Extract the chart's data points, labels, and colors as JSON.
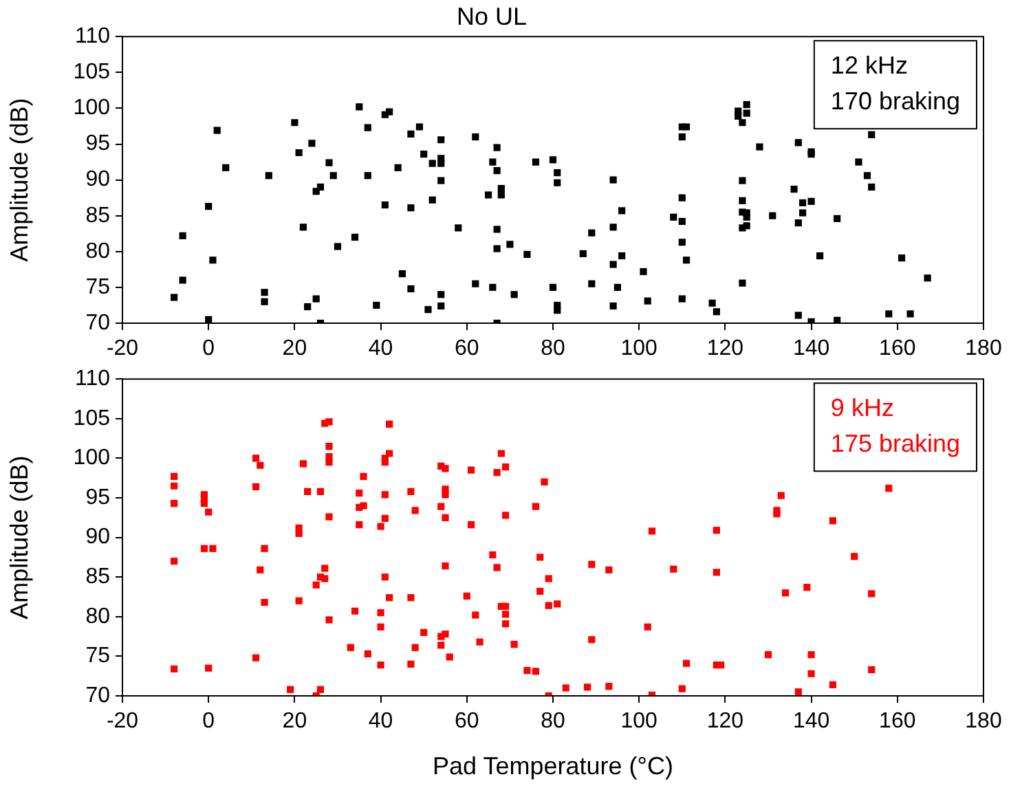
{
  "chart_data": [
    {
      "type": "scatter",
      "title": "No UL",
      "ylabel": "Amplitude (dB)",
      "xlim": [
        -20,
        180
      ],
      "xticks": [
        -20,
        0,
        20,
        40,
        60,
        80,
        100,
        120,
        140,
        160,
        180
      ],
      "ylim": [
        70,
        110
      ],
      "yticks": [
        70,
        75,
        80,
        85,
        90,
        95,
        100,
        105,
        110
      ],
      "marker": "square",
      "grid": false,
      "annotations": [
        "12 kHz",
        "170 braking"
      ],
      "series": [
        {
          "color": "#000000",
          "x": [
            -8,
            -6,
            -6,
            0,
            0,
            1,
            2,
            4,
            13,
            13,
            14,
            20,
            21,
            22,
            23,
            24,
            25,
            25,
            26,
            26,
            28,
            29,
            30,
            34,
            35,
            37,
            37,
            39,
            41,
            42,
            41,
            44,
            45,
            47,
            47,
            49,
            47,
            50,
            51,
            52,
            52,
            54,
            54,
            54,
            54,
            54,
            54,
            58,
            62,
            62,
            66,
            67,
            67,
            65,
            68,
            68,
            67,
            67,
            70,
            66,
            71,
            74,
            67,
            76,
            80,
            80,
            81,
            81,
            81,
            81,
            94,
            96,
            89,
            94,
            87,
            96,
            94,
            101,
            89,
            95,
            94,
            102,
            110,
            111,
            110,
            110,
            108,
            110,
            110,
            111,
            110,
            117,
            118,
            123,
            123,
            125,
            125,
            124,
            128,
            124,
            124,
            124,
            125,
            125,
            124,
            125,
            131,
            124,
            137,
            140,
            140,
            136,
            138,
            138,
            140,
            137,
            146,
            142,
            137,
            140,
            146,
            154,
            151,
            153,
            154,
            161,
            158,
            163,
            167
          ],
          "values": [
            73.6,
            82.2,
            76,
            86.3,
            70.5,
            78.8,
            96.9,
            91.7,
            74.3,
            73,
            90.6,
            98,
            93.8,
            83.4,
            72.3,
            95.1,
            73.4,
            88.4,
            89,
            70,
            92.4,
            90.6,
            80.7,
            82,
            100.2,
            97.3,
            90.6,
            72.5,
            99.1,
            99.5,
            86.5,
            91.7,
            76.9,
            96.4,
            74.8,
            97.4,
            86.1,
            93.6,
            71.9,
            92.3,
            87.2,
            95.6,
            93,
            92.3,
            89.9,
            74,
            72.4,
            83.3,
            96,
            75.5,
            92.5,
            94.5,
            91.3,
            87.9,
            88.8,
            87.9,
            83.1,
            80.4,
            81,
            75,
            74,
            79.6,
            70,
            92.5,
            92.8,
            75,
            91,
            89.6,
            72.5,
            71.8,
            90,
            85.7,
            82.6,
            83.4,
            79.7,
            79.4,
            78.2,
            77.2,
            75.5,
            75,
            72.4,
            73.1,
            97.4,
            97.4,
            96,
            87.5,
            84.8,
            84.2,
            81.3,
            78.8,
            73.4,
            72.8,
            71.6,
            99.6,
            98.9,
            100.5,
            99.3,
            98,
            94.6,
            89.9,
            87.1,
            85.5,
            85.4,
            84.8,
            83.3,
            83.6,
            85,
            75.6,
            95.2,
            93.9,
            93.6,
            88.7,
            86.8,
            85.4,
            87,
            84,
            84.6,
            79.4,
            71.1,
            70.2,
            70.4,
            96.3,
            92.5,
            90.6,
            89,
            79.1,
            71.3,
            71.3,
            76.3
          ]
        }
      ]
    },
    {
      "type": "scatter",
      "xlabel": "Pad Temperature (°C)",
      "ylabel": "Amplitude (dB)",
      "xlim": [
        -20,
        180
      ],
      "xticks": [
        -20,
        0,
        20,
        40,
        60,
        80,
        100,
        120,
        140,
        160,
        180
      ],
      "ylim": [
        70,
        110
      ],
      "yticks": [
        70,
        75,
        80,
        85,
        90,
        95,
        100,
        105,
        110
      ],
      "marker": "square",
      "grid": false,
      "annotations": [
        "9 kHz",
        "175 braking"
      ],
      "series": [
        {
          "color": "#ff0000",
          "x": [
            -8,
            -8,
            -8,
            -8,
            -8,
            -1,
            -1,
            -1,
            0,
            -1,
            1,
            0,
            11,
            12,
            11,
            13,
            12,
            13,
            11,
            19,
            22,
            23,
            26,
            21,
            21,
            21,
            27,
            26,
            27,
            25,
            27,
            28,
            28,
            28,
            28,
            28,
            28,
            26,
            25,
            36,
            35,
            35,
            36,
            35,
            34,
            33,
            37,
            41,
            41,
            42,
            42,
            41,
            40,
            41,
            41,
            42,
            40,
            40,
            40,
            47,
            48,
            47,
            48,
            50,
            47,
            54,
            55,
            55,
            55,
            54,
            55,
            55,
            54,
            55,
            54,
            56,
            61,
            61,
            60,
            62,
            63,
            68,
            67,
            69,
            69,
            66,
            67,
            68,
            69,
            69,
            69,
            71,
            74,
            76,
            76,
            77,
            78,
            79,
            77,
            79,
            79,
            81,
            83,
            88,
            89,
            89,
            93,
            93,
            103,
            102,
            103,
            108,
            110,
            111,
            118,
            118,
            118,
            119,
            130,
            132,
            132,
            133,
            134,
            139,
            137,
            140,
            140,
            145,
            145,
            150,
            154,
            154,
            158
          ],
          "values": [
            97.7,
            96.5,
            94.3,
            87,
            73.4,
            95.4,
            94.8,
            94.3,
            93.2,
            88.6,
            88.6,
            73.5,
            100,
            99.1,
            96.4,
            88.6,
            85.9,
            81.8,
            74.8,
            70.8,
            99.3,
            95.8,
            95.8,
            91.2,
            90.5,
            82,
            86.1,
            85,
            84.8,
            84,
            104.4,
            104.6,
            101.5,
            100.2,
            99.5,
            92.6,
            79.6,
            70.8,
            70,
            97.7,
            95.6,
            93.8,
            94,
            91.6,
            80.7,
            76.1,
            75.3,
            100,
            99.5,
            100.6,
            104.3,
            95.4,
            91.4,
            92.4,
            85,
            82.4,
            80.5,
            78.7,
            73.9,
            95.8,
            93.4,
            82.4,
            76.1,
            78,
            74,
            99,
            98.7,
            96.1,
            95.4,
            93.9,
            92.5,
            86.4,
            77.5,
            77.8,
            76.4,
            74.9,
            98.5,
            91.6,
            82.6,
            80.2,
            76.8,
            100.6,
            98.2,
            98.9,
            92.8,
            87.8,
            86.2,
            81.3,
            81.3,
            80.3,
            79.1,
            76.5,
            73.2,
            73.1,
            93.9,
            87.5,
            97,
            84.8,
            83.2,
            81.4,
            70,
            81.6,
            71,
            71.1,
            86.6,
            77.1,
            85.9,
            71.2,
            90.8,
            78.7,
            70.1,
            86,
            70.9,
            74.1,
            90.9,
            85.6,
            73.9,
            73.9,
            75.2,
            93.4,
            93,
            95.3,
            83,
            83.7,
            70.5,
            75.2,
            72.8,
            92.1,
            71.4,
            87.6,
            82.9,
            73.3,
            96.2
          ]
        }
      ]
    }
  ]
}
